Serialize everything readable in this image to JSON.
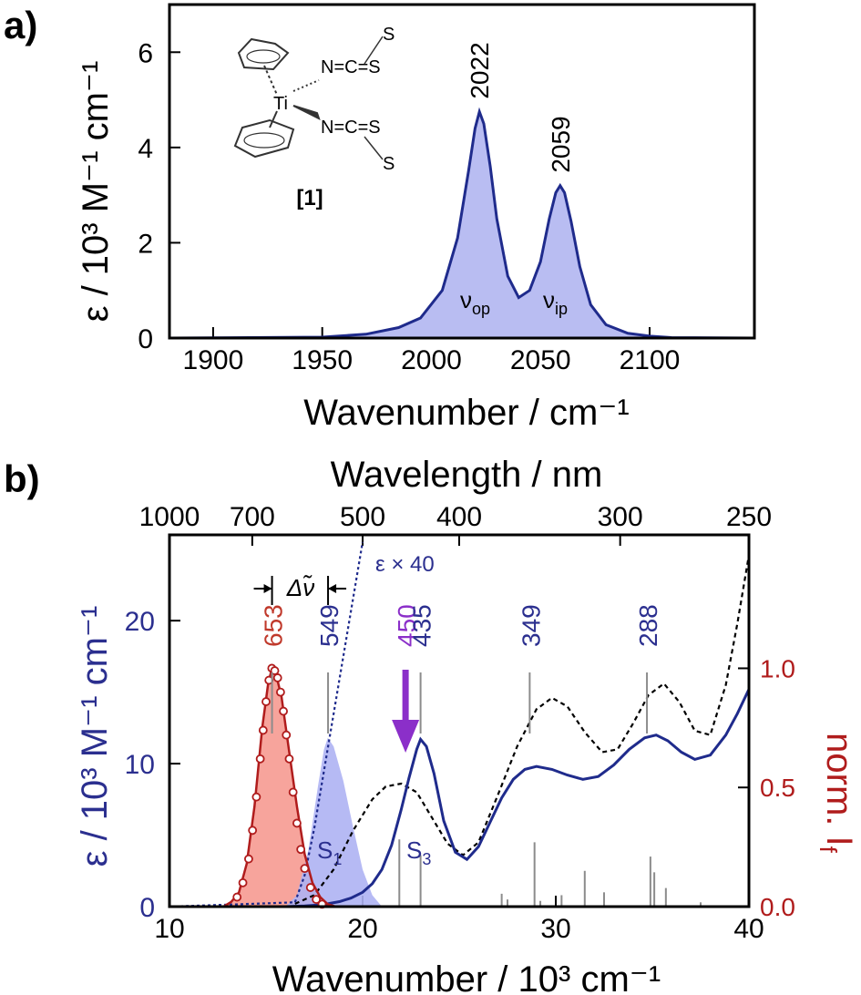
{
  "panel_a": {
    "label": "a)",
    "ylabel": "ε / 10³ M⁻¹ cm⁻¹",
    "xlabel": "Wavenumber / cm⁻¹",
    "compound_label": "[1]",
    "metal_label": "Ti",
    "ligand_label": "N=C=S",
    "band_op": "ν",
    "band_op_sub": "op",
    "band_ip": "ν",
    "band_ip_sub": "ip",
    "peak_labels": [
      "2022",
      "2059"
    ]
  },
  "panel_b": {
    "label": "b)",
    "ylabel_left": "ε / 10³ M⁻¹ cm⁻¹",
    "ylabel_right": "norm. I",
    "ylabel_right_sub": "f",
    "xlabel_bottom": "Wavenumber / 10³ cm⁻¹",
    "xlabel_top": "Wavelength / nm",
    "scaled_label": "ε × 40",
    "stokes_label": "Δν̃",
    "state_s1": "S",
    "state_s1_sub": "1",
    "state_s3": "S",
    "state_s3_sub": "3",
    "peak_labels": [
      {
        "text": "653",
        "x": 15.31,
        "color": "#c0392b"
      },
      {
        "text": "549",
        "x": 18.21,
        "color": "#2b2f8f"
      },
      {
        "text": "450",
        "x": 22.22,
        "color": "#8b2fc9"
      },
      {
        "text": "435",
        "x": 23.0,
        "color": "#2b2f8f"
      },
      {
        "text": "349",
        "x": 28.65,
        "color": "#2b2f8f"
      },
      {
        "text": "288",
        "x": 34.72,
        "color": "#2b2f8f"
      }
    ]
  },
  "colors": {
    "ir_line": "#1f2b8c",
    "ir_fill": "#b9bdf2",
    "abs_line": "#1f2b8c",
    "abs_fill": "#aeb2f3",
    "em_line": "#b01c1c",
    "em_fill": "#f7a49c",
    "left_axis": "#2b2f8f",
    "right_axis": "#b01c1c",
    "excitation": "#8b2fc9",
    "stick": "#8c8c8c"
  },
  "chart_data": [
    {
      "type": "area",
      "title": "",
      "xlabel": "Wavenumber / cm⁻¹",
      "ylabel": "ε / 10³ M⁻¹ cm⁻¹",
      "xlim": [
        1880,
        2148
      ],
      "ylim": [
        0,
        7
      ],
      "xticks": [
        1900,
        1950,
        2000,
        2050,
        2100
      ],
      "yticks": [
        0,
        2,
        4,
        6
      ],
      "peaks": [
        {
          "x": 2022,
          "y": 4.75,
          "label": "2022",
          "band": "op"
        },
        {
          "x": 2059,
          "y": 3.2,
          "label": "2059",
          "band": "ip"
        }
      ],
      "series": [
        {
          "x": [
            1880,
            1950,
            1970,
            1985,
            1995,
            2005,
            2012,
            2017,
            2020,
            2022,
            2024,
            2027,
            2030,
            2035,
            2040,
            2045,
            2050,
            2054,
            2057,
            2059,
            2061,
            2064,
            2068,
            2073,
            2080,
            2090,
            2100,
            2110,
            2148
          ],
          "y": [
            0,
            0.02,
            0.08,
            0.22,
            0.42,
            1.0,
            2.1,
            3.5,
            4.4,
            4.75,
            4.5,
            3.6,
            2.5,
            1.3,
            0.85,
            1.0,
            1.6,
            2.5,
            3.05,
            3.2,
            3.05,
            2.45,
            1.5,
            0.7,
            0.28,
            0.1,
            0.04,
            0.01,
            0
          ]
        }
      ]
    },
    {
      "type": "line",
      "title": "",
      "xlabel": "Wavenumber / 10³ cm⁻¹",
      "x2label": "Wavelength / nm",
      "ylabel": "ε / 10³ M⁻¹ cm⁻¹",
      "y2label": "norm. I_f",
      "xlim": [
        10,
        40
      ],
      "ylim": [
        0,
        26
      ],
      "y2lim": [
        0,
        1.56
      ],
      "xticks": [
        10,
        20,
        30,
        40
      ],
      "yticks": [
        0,
        10,
        20
      ],
      "y2ticks": [
        0.0,
        0.5,
        1.0
      ],
      "top_ticks_nm": [
        1000,
        700,
        500,
        400,
        300,
        250
      ],
      "series": [
        {
          "name": "absorption",
          "x": [
            16.0,
            17.0,
            17.6,
            18.2,
            18.8,
            19.4,
            20.0,
            20.5,
            21.0,
            21.5,
            22.0,
            22.4,
            22.8,
            23.0,
            23.3,
            23.7,
            24.2,
            24.8,
            25.4,
            26.0,
            26.6,
            27.2,
            27.8,
            28.4,
            29.0,
            29.8,
            30.6,
            31.4,
            32.2,
            33.0,
            33.8,
            34.6,
            35.2,
            35.8,
            36.5,
            37.2,
            38.0,
            38.8,
            39.4,
            40.0
          ],
          "y": [
            0,
            0.05,
            0.1,
            0.2,
            0.35,
            0.6,
            1.0,
            1.6,
            2.6,
            4.3,
            6.8,
            9.0,
            11.0,
            11.7,
            11.2,
            9.3,
            6.0,
            3.8,
            3.3,
            4.2,
            5.9,
            7.6,
            8.9,
            9.6,
            9.8,
            9.6,
            9.2,
            8.9,
            9.1,
            9.9,
            11.0,
            11.8,
            12.0,
            11.6,
            10.8,
            10.3,
            10.6,
            12.0,
            13.5,
            15.2
          ]
        },
        {
          "name": "absorption ×40",
          "x": [
            10.0,
            16.5,
            17.0,
            17.5,
            18.0,
            18.5,
            19.0,
            19.5,
            20.0
          ],
          "y": [
            0,
            0.3,
            2.2,
            5.5,
            9.5,
            13.5,
            17.5,
            21.5,
            25.5
          ]
        },
        {
          "name": "calculated",
          "x": [
            16.5,
            17.5,
            18.5,
            19.5,
            20.5,
            21.2,
            22.0,
            22.8,
            23.6,
            24.4,
            25.2,
            26.0,
            27.0,
            28.0,
            29.0,
            29.8,
            30.6,
            31.5,
            32.4,
            33.2,
            34.0,
            34.8,
            35.6,
            36.4,
            37.2,
            38.0,
            38.8,
            39.4,
            40.0
          ],
          "y": [
            0.2,
            0.8,
            2.6,
            5.3,
            7.5,
            8.4,
            8.6,
            8.0,
            6.2,
            4.4,
            3.6,
            4.5,
            7.8,
            11.2,
            13.8,
            14.6,
            14.0,
            12.2,
            10.8,
            11.0,
            12.8,
            14.8,
            15.6,
            14.3,
            12.3,
            12.0,
            15.5,
            19.8,
            24.6
          ]
        },
        {
          "name": "emission",
          "axis": "right",
          "x": [
            12.8,
            13.2,
            13.6,
            14.0,
            14.4,
            14.8,
            15.1,
            15.3,
            15.5,
            15.8,
            16.2,
            16.6,
            17.0,
            17.4,
            17.8,
            18.2,
            18.6
          ],
          "y": [
            0.0,
            0.02,
            0.06,
            0.18,
            0.42,
            0.75,
            0.93,
            1.0,
            0.98,
            0.88,
            0.65,
            0.42,
            0.22,
            0.1,
            0.04,
            0.01,
            0.0
          ]
        },
        {
          "name": "S1 band",
          "x": [
            16.0,
            16.6,
            17.2,
            17.7,
            18.0,
            18.2,
            18.5,
            19.0,
            19.5,
            20.0,
            20.5,
            21.0
          ],
          "y": [
            0,
            0.8,
            4.0,
            8.5,
            11.0,
            11.8,
            11.2,
            8.8,
            5.6,
            2.6,
            0.8,
            0
          ]
        }
      ],
      "emission_points": {
        "x": [
          13.5,
          13.8,
          14.1,
          14.3,
          14.5,
          14.7,
          14.85,
          15.0,
          15.15,
          15.3,
          15.45,
          15.6,
          15.75,
          15.9,
          16.05,
          16.2,
          16.4,
          16.6,
          16.8,
          17.0,
          17.3,
          17.6,
          17.9
        ],
        "y": [
          0.04,
          0.1,
          0.2,
          0.32,
          0.46,
          0.62,
          0.74,
          0.86,
          0.95,
          1.0,
          0.99,
          0.96,
          0.9,
          0.82,
          0.72,
          0.62,
          0.48,
          0.35,
          0.24,
          0.16,
          0.08,
          0.03,
          0.01
        ]
      },
      "sticks": {
        "x": [
          21.9,
          23.0,
          27.2,
          27.5,
          28.9,
          29.2,
          30.3,
          31.5,
          32.5,
          34.9,
          35.1,
          35.7,
          37.5
        ],
        "y": [
          4.7,
          3.6,
          0.9,
          0.5,
          4.5,
          0.4,
          0.8,
          2.5,
          1.0,
          3.5,
          2.4,
          1.3,
          0.3
        ]
      },
      "excitation_nm": 450
    }
  ]
}
